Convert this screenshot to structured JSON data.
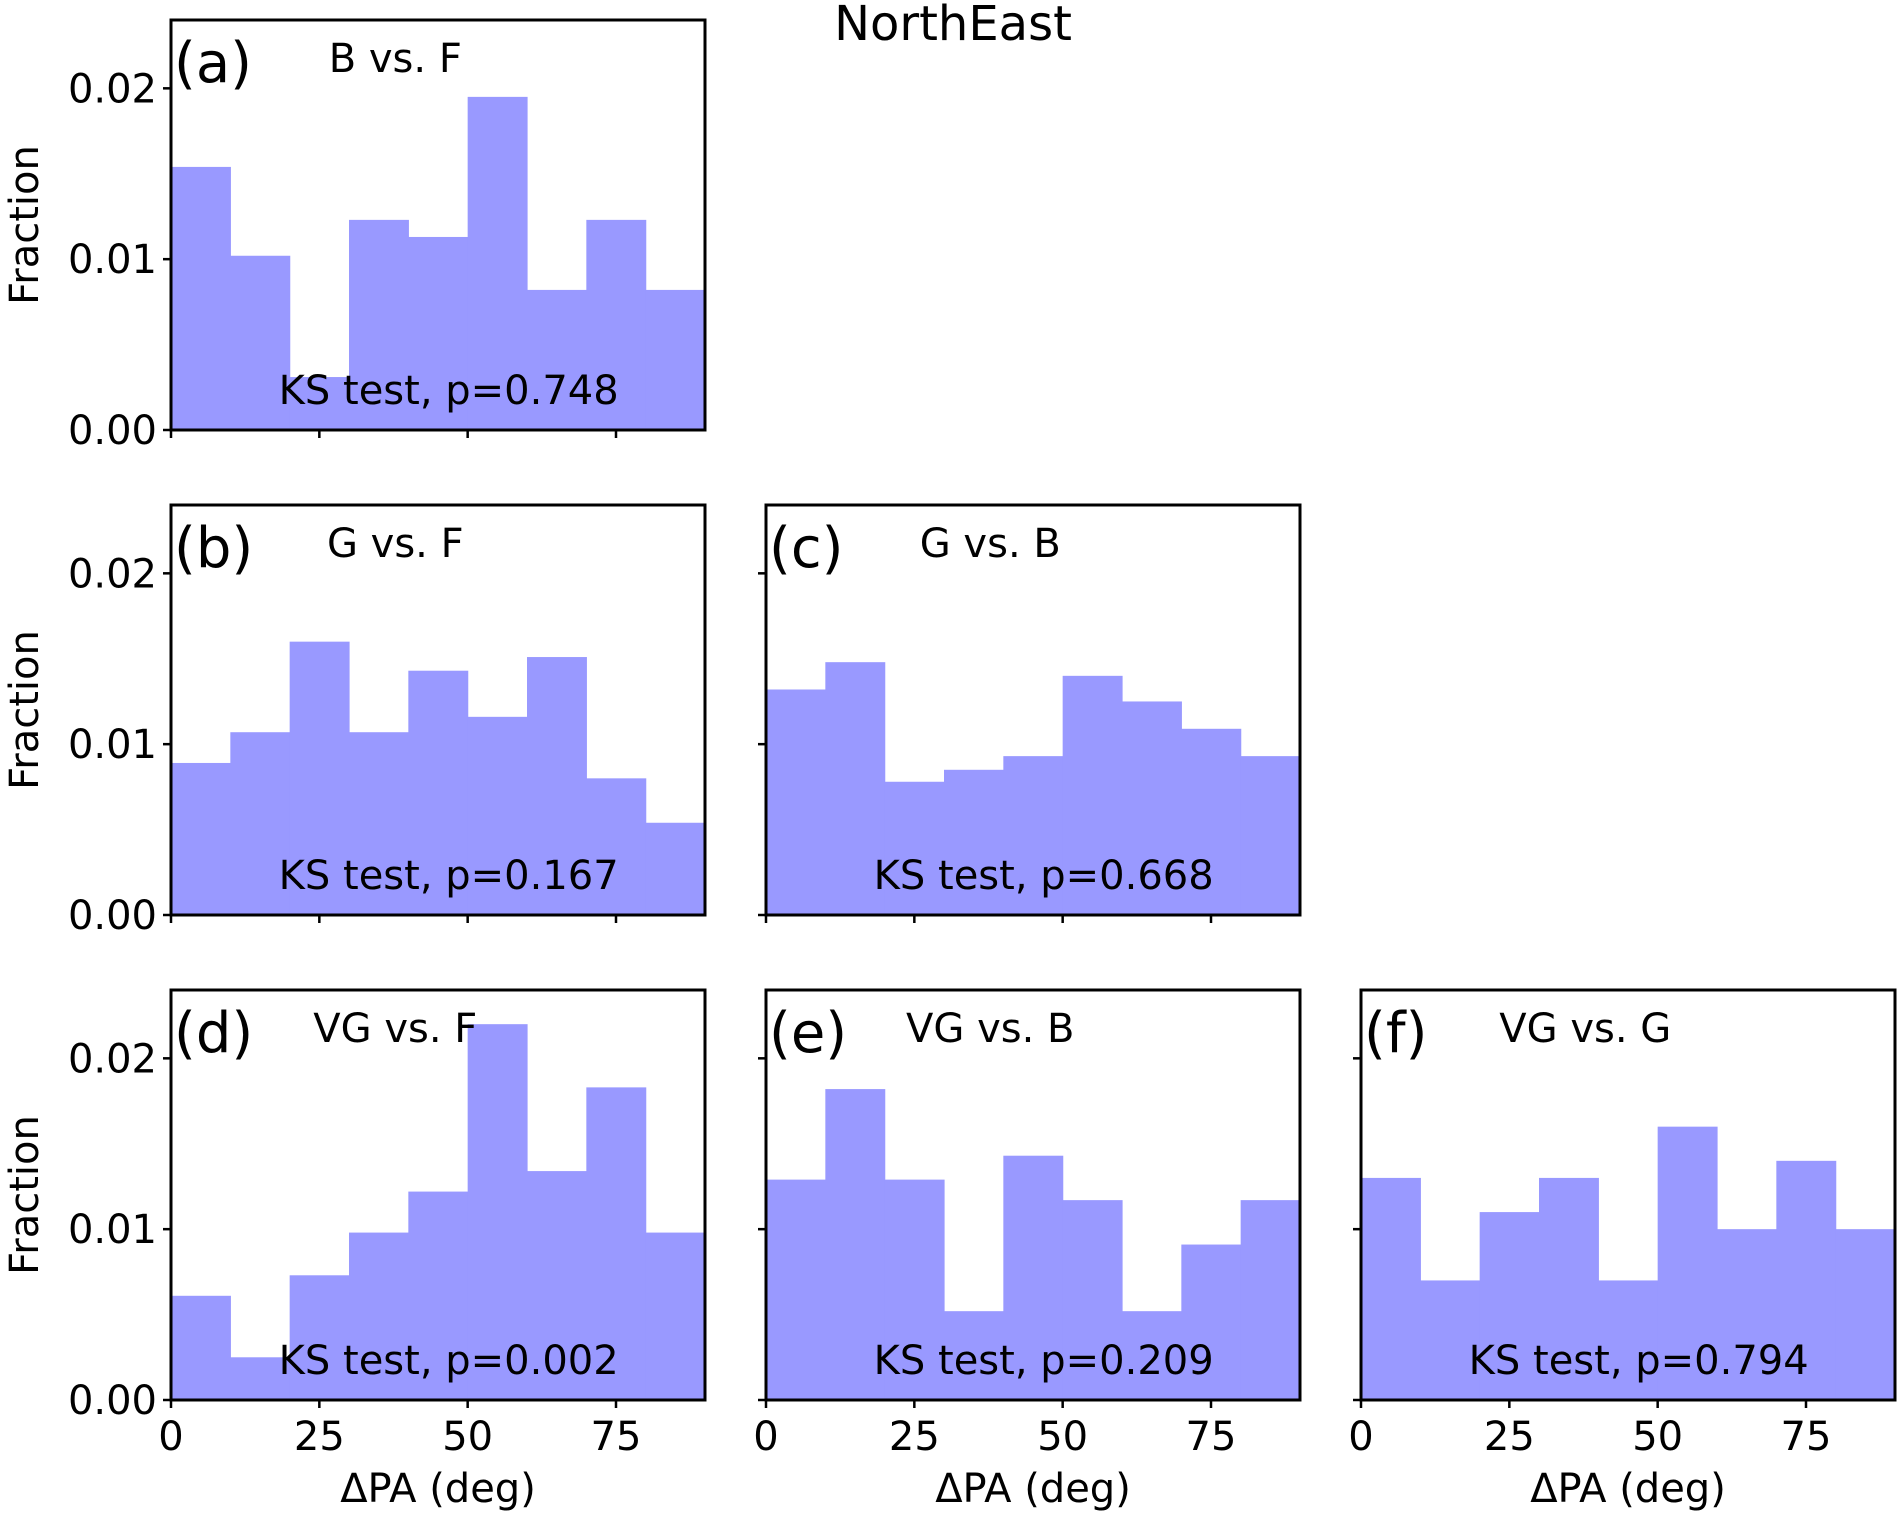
{
  "figure_title": "NorthEast",
  "chart_data": [
    {
      "type": "bar",
      "panel_label": "(a)",
      "title": "B vs. F",
      "annotation": "KS test, p=0.748",
      "xlabel": "ΔPA (deg)",
      "ylabel": "Fraction",
      "bin_edges": [
        0,
        10,
        20,
        30,
        40,
        50,
        60,
        70,
        80,
        90
      ],
      "values": [
        0.0154,
        0.0102,
        0.0031,
        0.0123,
        0.0113,
        0.0195,
        0.0082,
        0.0123,
        0.0082
      ],
      "xlim": [
        0,
        90
      ],
      "ylim": [
        0,
        0.024
      ],
      "xticks": [
        0,
        25,
        50,
        75
      ],
      "yticks": [
        0,
        0.01,
        0.02
      ],
      "ytick_labels": [
        "0.00",
        "0.01",
        "0.02"
      ],
      "show_xlabels": false,
      "show_ylabels": true,
      "color": "#9999ff"
    },
    {
      "type": "bar",
      "panel_label": "(b)",
      "title": "G vs. F",
      "annotation": "KS test, p=0.167",
      "xlabel": "ΔPA (deg)",
      "ylabel": "Fraction",
      "bin_edges": [
        0,
        10,
        20,
        30,
        40,
        50,
        60,
        70,
        80,
        90
      ],
      "values": [
        0.0089,
        0.0107,
        0.016,
        0.0107,
        0.0143,
        0.0116,
        0.0151,
        0.008,
        0.0054
      ],
      "xlim": [
        0,
        90
      ],
      "ylim": [
        0,
        0.024
      ],
      "xticks": [
        0,
        25,
        50,
        75
      ],
      "yticks": [
        0,
        0.01,
        0.02
      ],
      "ytick_labels": [
        "0.00",
        "0.01",
        "0.02"
      ],
      "show_xlabels": false,
      "show_ylabels": true,
      "color": "#9999ff"
    },
    {
      "type": "bar",
      "panel_label": "(c)",
      "title": "G vs. B",
      "annotation": "KS test, p=0.668",
      "xlabel": "ΔPA (deg)",
      "ylabel": "Fraction",
      "bin_edges": [
        0,
        10,
        20,
        30,
        40,
        50,
        60,
        70,
        80,
        90
      ],
      "values": [
        0.0132,
        0.0148,
        0.0078,
        0.0085,
        0.0093,
        0.014,
        0.0125,
        0.0109,
        0.0093
      ],
      "xlim": [
        0,
        90
      ],
      "ylim": [
        0,
        0.024
      ],
      "xticks": [
        0,
        25,
        50,
        75
      ],
      "yticks": [
        0,
        0.01,
        0.02
      ],
      "ytick_labels": [
        "0.00",
        "0.01",
        "0.02"
      ],
      "show_xlabels": false,
      "show_ylabels": false,
      "color": "#9999ff"
    },
    {
      "type": "bar",
      "panel_label": "(d)",
      "title": "VG vs. F",
      "annotation": "KS test, p=0.002",
      "xlabel": "ΔPA (deg)",
      "ylabel": "Fraction",
      "bin_edges": [
        0,
        10,
        20,
        30,
        40,
        50,
        60,
        70,
        80,
        90
      ],
      "values": [
        0.0061,
        0.0025,
        0.0073,
        0.0098,
        0.0122,
        0.022,
        0.0134,
        0.0183,
        0.0098
      ],
      "xlim": [
        0,
        90
      ],
      "ylim": [
        0,
        0.024
      ],
      "xticks": [
        0,
        25,
        50,
        75
      ],
      "yticks": [
        0,
        0.01,
        0.02
      ],
      "ytick_labels": [
        "0.00",
        "0.01",
        "0.02"
      ],
      "show_xlabels": true,
      "show_ylabels": true,
      "color": "#9999ff"
    },
    {
      "type": "bar",
      "panel_label": "(e)",
      "title": "VG vs. B",
      "annotation": "KS test, p=0.209",
      "xlabel": "ΔPA (deg)",
      "ylabel": "Fraction",
      "bin_edges": [
        0,
        10,
        20,
        30,
        40,
        50,
        60,
        70,
        80,
        90
      ],
      "values": [
        0.0129,
        0.0182,
        0.0129,
        0.0052,
        0.0143,
        0.0117,
        0.0052,
        0.0091,
        0.0117
      ],
      "xlim": [
        0,
        90
      ],
      "ylim": [
        0,
        0.024
      ],
      "xticks": [
        0,
        25,
        50,
        75
      ],
      "yticks": [
        0,
        0.01,
        0.02
      ],
      "ytick_labels": [
        "0.00",
        "0.01",
        "0.02"
      ],
      "show_xlabels": true,
      "show_ylabels": false,
      "color": "#9999ff"
    },
    {
      "type": "bar",
      "panel_label": "(f)",
      "title": "VG vs. G",
      "annotation": "KS test, p=0.794",
      "xlabel": "ΔPA (deg)",
      "ylabel": "Fraction",
      "bin_edges": [
        0,
        10,
        20,
        30,
        40,
        50,
        60,
        70,
        80,
        90
      ],
      "values": [
        0.013,
        0.007,
        0.011,
        0.013,
        0.007,
        0.016,
        0.01,
        0.014,
        0.01
      ],
      "xlim": [
        0,
        90
      ],
      "ylim": [
        0,
        0.024
      ],
      "xticks": [
        0,
        25,
        50,
        75
      ],
      "yticks": [
        0,
        0.01,
        0.02
      ],
      "ytick_labels": [
        "0.00",
        "0.01",
        "0.02"
      ],
      "show_xlabels": true,
      "show_ylabels": false,
      "color": "#9999ff"
    }
  ]
}
